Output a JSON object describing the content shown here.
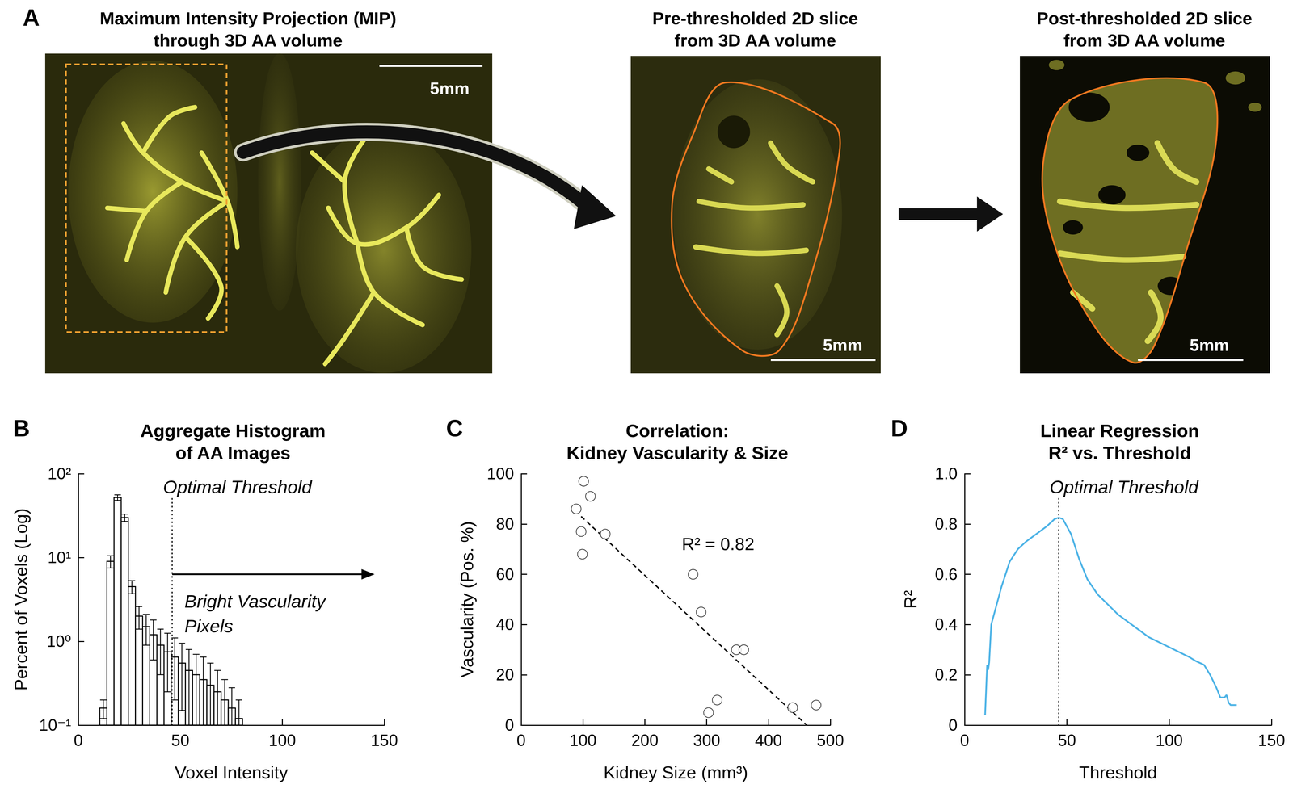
{
  "figure": {
    "panel_a": {
      "label": "A",
      "images": [
        {
          "title": "Maximum Intensity Projection (MIP)\nthrough 3D AA volume",
          "scale_bar": "5mm"
        },
        {
          "title": "Pre-thresholded 2D slice\nfrom 3D AA volume",
          "scale_bar": "5mm"
        },
        {
          "title": "Post-thresholded 2D slice\nfrom 3D AA volume",
          "scale_bar": "5mm"
        }
      ]
    }
  },
  "chart_data": [
    {
      "panel_label": "B",
      "type": "histogram",
      "title": "Aggregate Histogram\nof AA Images",
      "xlabel": "Voxel Intensity",
      "ylabel": "Percent of Voxels (Log)",
      "bins": [
        10.5,
        14,
        17.5,
        21,
        24.5,
        28,
        31.5,
        35,
        38.5,
        42,
        45.5,
        49,
        52.5,
        56,
        59.5,
        63,
        66.5,
        70,
        73.5,
        77,
        80.5
      ],
      "values": [
        0.16,
        9,
        52,
        30,
        4.5,
        2.0,
        1.5,
        1.2,
        0.9,
        0.75,
        0.65,
        0.55,
        0.45,
        0.4,
        0.35,
        0.3,
        0.25,
        0.2,
        0.16,
        0.12
      ],
      "errors": [
        0.04,
        1.5,
        4,
        3,
        0.8,
        0.6,
        0.6,
        0.6,
        0.5,
        0.5,
        0.45,
        0.4,
        0.35,
        0.3,
        0.3,
        0.25,
        0.2,
        0.15,
        0.12,
        0.08
      ],
      "color": "#ffffff",
      "log": "y",
      "grid": false,
      "xlim": [
        0,
        150
      ],
      "xticks": [
        0,
        50,
        100,
        150
      ],
      "ylim": [
        0.1,
        100
      ],
      "yticks": [
        {
          "value": 0.1,
          "label": "10⁻¹"
        },
        {
          "value": 1,
          "label": "10⁰"
        },
        {
          "value": 10,
          "label": "10¹"
        },
        {
          "value": 100,
          "label": "10²"
        }
      ],
      "threshold": {
        "x": 46,
        "label": "Optimal Threshold"
      },
      "arrow_label": "Bright Vascularity\nPixels"
    },
    {
      "panel_label": "C",
      "type": "scatter",
      "title": "Correlation:\nKidney Vascularity & Size",
      "xlabel": "Kidney Size (mm³)",
      "ylabel": "Vascularity (Pos. %)",
      "x": [
        89,
        101,
        112,
        97,
        99,
        136,
        278,
        291,
        348,
        360,
        303,
        317,
        439,
        477
      ],
      "values": [
        86,
        97,
        91,
        77,
        68,
        76,
        60,
        45,
        30,
        30,
        5,
        10,
        7,
        8
      ],
      "marker": "open_circle",
      "color": "#000000",
      "grid": false,
      "xlim": [
        0,
        500
      ],
      "xticks": [
        0,
        100,
        200,
        300,
        400,
        500
      ],
      "ylim": [
        0,
        100
      ],
      "yticks": [
        0,
        20,
        40,
        60,
        80,
        100
      ],
      "fit_line": {
        "x": [
          97,
          462
        ],
        "y": [
          83,
          0
        ],
        "line_style": "dashed"
      },
      "annotation": "R² = 0.82"
    },
    {
      "panel_label": "D",
      "type": "line",
      "title": "Linear Regression\nR² vs. Threshold",
      "xlabel": "Threshold",
      "ylabel": "R²",
      "x": [
        10,
        11,
        11.5,
        12,
        13,
        15,
        18,
        22,
        26,
        30,
        35,
        40,
        44,
        46,
        48,
        52,
        56,
        60,
        65,
        70,
        75,
        80,
        85,
        90,
        95,
        100,
        105,
        110,
        113,
        117,
        120,
        123,
        125,
        127,
        128,
        129,
        130,
        133
      ],
      "values": [
        0.04,
        0.24,
        0.22,
        0.25,
        0.4,
        0.46,
        0.55,
        0.65,
        0.7,
        0.73,
        0.76,
        0.79,
        0.82,
        0.825,
        0.82,
        0.76,
        0.66,
        0.58,
        0.52,
        0.48,
        0.44,
        0.41,
        0.38,
        0.35,
        0.33,
        0.31,
        0.29,
        0.27,
        0.255,
        0.24,
        0.2,
        0.15,
        0.11,
        0.11,
        0.12,
        0.09,
        0.08,
        0.08
      ],
      "color": "#4db3e6",
      "grid": false,
      "xlim": [
        0,
        150
      ],
      "xticks": [
        0,
        50,
        100,
        150
      ],
      "ylim": [
        0,
        1
      ],
      "yticks": [
        0,
        0.2,
        0.4,
        0.6,
        0.8,
        {
          "value": 1,
          "label": "1.0"
        }
      ],
      "threshold": {
        "x": 46,
        "label": "Optimal Threshold"
      }
    }
  ]
}
